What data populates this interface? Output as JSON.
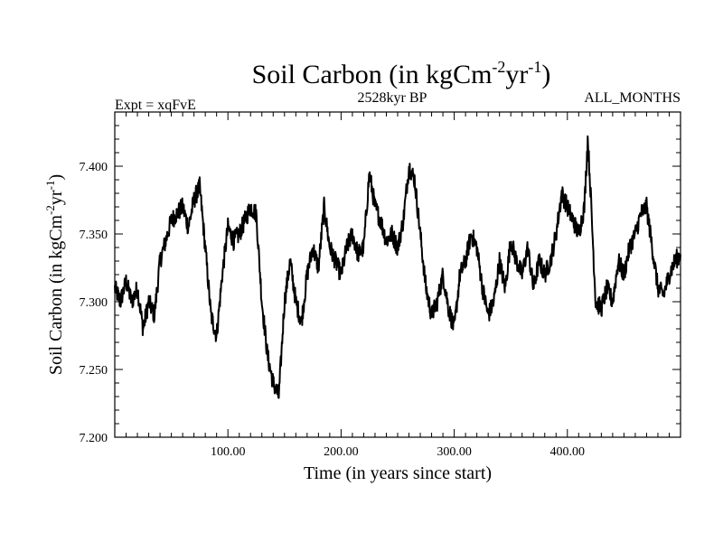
{
  "chart_data": {
    "type": "line",
    "title": "Soil Carbon (in kgCm",
    "title_sup1": "-2",
    "title_mid": "yr",
    "title_sup2": "-1",
    "title_end": ")",
    "left_label": "Expt = xqFvE",
    "center_label": "2528kyr BP",
    "right_label": "ALL_MONTHS",
    "xlabel": "Time (in years since start)",
    "ylabel": "Soil Carbon (in kgCm",
    "ylabel_sup1": "-2",
    "ylabel_mid": "yr",
    "ylabel_sup2": "-1",
    "ylabel_end": ")",
    "xlim": [
      0,
      500
    ],
    "ylim": [
      7.2,
      7.44
    ],
    "x_ticks": [
      100,
      200,
      300,
      400
    ],
    "x_tick_labels": [
      "100.00",
      "200.00",
      "300.00",
      "400.00"
    ],
    "y_ticks": [
      7.2,
      7.25,
      7.3,
      7.35,
      7.4
    ],
    "y_tick_labels": [
      "7.200",
      "7.250",
      "7.300",
      "7.350",
      "7.400"
    ],
    "series": [
      {
        "name": "Soil Carbon",
        "color": "#000000",
        "x": [
          0,
          5,
          10,
          15,
          20,
          25,
          30,
          35,
          40,
          45,
          50,
          55,
          60,
          65,
          70,
          75,
          80,
          85,
          90,
          95,
          100,
          105,
          110,
          115,
          120,
          125,
          130,
          135,
          140,
          145,
          150,
          155,
          160,
          165,
          170,
          175,
          180,
          185,
          190,
          195,
          200,
          205,
          210,
          215,
          220,
          225,
          230,
          235,
          240,
          245,
          250,
          255,
          260,
          265,
          270,
          275,
          280,
          285,
          290,
          295,
          300,
          305,
          310,
          315,
          320,
          325,
          330,
          335,
          340,
          345,
          350,
          355,
          360,
          365,
          370,
          375,
          380,
          385,
          390,
          395,
          400,
          405,
          410,
          415,
          418,
          420,
          425,
          430,
          435,
          440,
          445,
          450,
          455,
          460,
          465,
          470,
          475,
          480,
          485,
          490,
          495,
          500
        ],
        "y": [
          7.31,
          7.3,
          7.315,
          7.3,
          7.31,
          7.28,
          7.3,
          7.29,
          7.33,
          7.345,
          7.36,
          7.365,
          7.37,
          7.355,
          7.375,
          7.385,
          7.34,
          7.29,
          7.275,
          7.32,
          7.355,
          7.345,
          7.35,
          7.36,
          7.37,
          7.365,
          7.3,
          7.26,
          7.24,
          7.23,
          7.3,
          7.33,
          7.3,
          7.285,
          7.32,
          7.34,
          7.325,
          7.37,
          7.34,
          7.33,
          7.32,
          7.34,
          7.35,
          7.335,
          7.34,
          7.395,
          7.37,
          7.36,
          7.345,
          7.35,
          7.34,
          7.36,
          7.4,
          7.39,
          7.35,
          7.31,
          7.29,
          7.3,
          7.32,
          7.295,
          7.28,
          7.32,
          7.33,
          7.35,
          7.34,
          7.31,
          7.29,
          7.3,
          7.33,
          7.31,
          7.345,
          7.33,
          7.32,
          7.34,
          7.31,
          7.33,
          7.32,
          7.33,
          7.35,
          7.38,
          7.37,
          7.36,
          7.35,
          7.37,
          7.42,
          7.39,
          7.3,
          7.295,
          7.31,
          7.3,
          7.33,
          7.32,
          7.34,
          7.35,
          7.365,
          7.37,
          7.34,
          7.31,
          7.305,
          7.32,
          7.33,
          7.335
        ]
      }
    ]
  }
}
